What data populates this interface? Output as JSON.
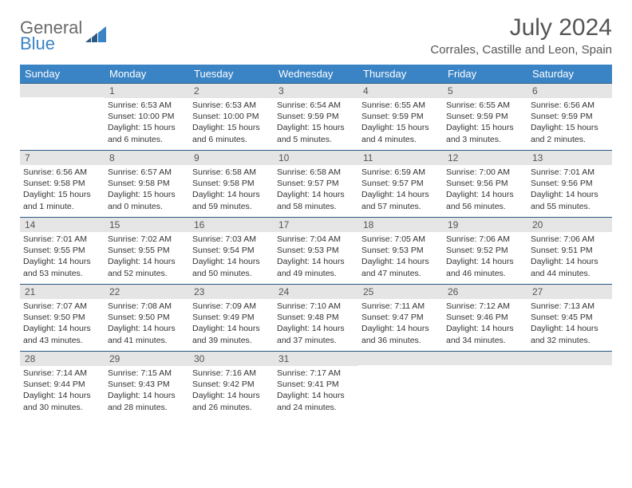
{
  "logo": {
    "text_general": "General",
    "text_blue": "Blue"
  },
  "title": "July 2024",
  "location": "Corrales, Castille and Leon, Spain",
  "day_headers": [
    "Sunday",
    "Monday",
    "Tuesday",
    "Wednesday",
    "Thursday",
    "Friday",
    "Saturday"
  ],
  "colors": {
    "header_bg": "#3a84c5",
    "header_text": "#ffffff",
    "day_number_bg": "#e5e5e5",
    "border_top": "#2a5a85",
    "text_gray": "#555555",
    "logo_blue": "#3a84c5"
  },
  "weeks": [
    [
      {
        "day": "",
        "sunrise": "",
        "sunset": "",
        "daylight1": "",
        "daylight2": ""
      },
      {
        "day": "1",
        "sunrise": "Sunrise: 6:53 AM",
        "sunset": "Sunset: 10:00 PM",
        "daylight1": "Daylight: 15 hours",
        "daylight2": "and 6 minutes."
      },
      {
        "day": "2",
        "sunrise": "Sunrise: 6:53 AM",
        "sunset": "Sunset: 10:00 PM",
        "daylight1": "Daylight: 15 hours",
        "daylight2": "and 6 minutes."
      },
      {
        "day": "3",
        "sunrise": "Sunrise: 6:54 AM",
        "sunset": "Sunset: 9:59 PM",
        "daylight1": "Daylight: 15 hours",
        "daylight2": "and 5 minutes."
      },
      {
        "day": "4",
        "sunrise": "Sunrise: 6:55 AM",
        "sunset": "Sunset: 9:59 PM",
        "daylight1": "Daylight: 15 hours",
        "daylight2": "and 4 minutes."
      },
      {
        "day": "5",
        "sunrise": "Sunrise: 6:55 AM",
        "sunset": "Sunset: 9:59 PM",
        "daylight1": "Daylight: 15 hours",
        "daylight2": "and 3 minutes."
      },
      {
        "day": "6",
        "sunrise": "Sunrise: 6:56 AM",
        "sunset": "Sunset: 9:59 PM",
        "daylight1": "Daylight: 15 hours",
        "daylight2": "and 2 minutes."
      }
    ],
    [
      {
        "day": "7",
        "sunrise": "Sunrise: 6:56 AM",
        "sunset": "Sunset: 9:58 PM",
        "daylight1": "Daylight: 15 hours",
        "daylight2": "and 1 minute."
      },
      {
        "day": "8",
        "sunrise": "Sunrise: 6:57 AM",
        "sunset": "Sunset: 9:58 PM",
        "daylight1": "Daylight: 15 hours",
        "daylight2": "and 0 minutes."
      },
      {
        "day": "9",
        "sunrise": "Sunrise: 6:58 AM",
        "sunset": "Sunset: 9:58 PM",
        "daylight1": "Daylight: 14 hours",
        "daylight2": "and 59 minutes."
      },
      {
        "day": "10",
        "sunrise": "Sunrise: 6:58 AM",
        "sunset": "Sunset: 9:57 PM",
        "daylight1": "Daylight: 14 hours",
        "daylight2": "and 58 minutes."
      },
      {
        "day": "11",
        "sunrise": "Sunrise: 6:59 AM",
        "sunset": "Sunset: 9:57 PM",
        "daylight1": "Daylight: 14 hours",
        "daylight2": "and 57 minutes."
      },
      {
        "day": "12",
        "sunrise": "Sunrise: 7:00 AM",
        "sunset": "Sunset: 9:56 PM",
        "daylight1": "Daylight: 14 hours",
        "daylight2": "and 56 minutes."
      },
      {
        "day": "13",
        "sunrise": "Sunrise: 7:01 AM",
        "sunset": "Sunset: 9:56 PM",
        "daylight1": "Daylight: 14 hours",
        "daylight2": "and 55 minutes."
      }
    ],
    [
      {
        "day": "14",
        "sunrise": "Sunrise: 7:01 AM",
        "sunset": "Sunset: 9:55 PM",
        "daylight1": "Daylight: 14 hours",
        "daylight2": "and 53 minutes."
      },
      {
        "day": "15",
        "sunrise": "Sunrise: 7:02 AM",
        "sunset": "Sunset: 9:55 PM",
        "daylight1": "Daylight: 14 hours",
        "daylight2": "and 52 minutes."
      },
      {
        "day": "16",
        "sunrise": "Sunrise: 7:03 AM",
        "sunset": "Sunset: 9:54 PM",
        "daylight1": "Daylight: 14 hours",
        "daylight2": "and 50 minutes."
      },
      {
        "day": "17",
        "sunrise": "Sunrise: 7:04 AM",
        "sunset": "Sunset: 9:53 PM",
        "daylight1": "Daylight: 14 hours",
        "daylight2": "and 49 minutes."
      },
      {
        "day": "18",
        "sunrise": "Sunrise: 7:05 AM",
        "sunset": "Sunset: 9:53 PM",
        "daylight1": "Daylight: 14 hours",
        "daylight2": "and 47 minutes."
      },
      {
        "day": "19",
        "sunrise": "Sunrise: 7:06 AM",
        "sunset": "Sunset: 9:52 PM",
        "daylight1": "Daylight: 14 hours",
        "daylight2": "and 46 minutes."
      },
      {
        "day": "20",
        "sunrise": "Sunrise: 7:06 AM",
        "sunset": "Sunset: 9:51 PM",
        "daylight1": "Daylight: 14 hours",
        "daylight2": "and 44 minutes."
      }
    ],
    [
      {
        "day": "21",
        "sunrise": "Sunrise: 7:07 AM",
        "sunset": "Sunset: 9:50 PM",
        "daylight1": "Daylight: 14 hours",
        "daylight2": "and 43 minutes."
      },
      {
        "day": "22",
        "sunrise": "Sunrise: 7:08 AM",
        "sunset": "Sunset: 9:50 PM",
        "daylight1": "Daylight: 14 hours",
        "daylight2": "and 41 minutes."
      },
      {
        "day": "23",
        "sunrise": "Sunrise: 7:09 AM",
        "sunset": "Sunset: 9:49 PM",
        "daylight1": "Daylight: 14 hours",
        "daylight2": "and 39 minutes."
      },
      {
        "day": "24",
        "sunrise": "Sunrise: 7:10 AM",
        "sunset": "Sunset: 9:48 PM",
        "daylight1": "Daylight: 14 hours",
        "daylight2": "and 37 minutes."
      },
      {
        "day": "25",
        "sunrise": "Sunrise: 7:11 AM",
        "sunset": "Sunset: 9:47 PM",
        "daylight1": "Daylight: 14 hours",
        "daylight2": "and 36 minutes."
      },
      {
        "day": "26",
        "sunrise": "Sunrise: 7:12 AM",
        "sunset": "Sunset: 9:46 PM",
        "daylight1": "Daylight: 14 hours",
        "daylight2": "and 34 minutes."
      },
      {
        "day": "27",
        "sunrise": "Sunrise: 7:13 AM",
        "sunset": "Sunset: 9:45 PM",
        "daylight1": "Daylight: 14 hours",
        "daylight2": "and 32 minutes."
      }
    ],
    [
      {
        "day": "28",
        "sunrise": "Sunrise: 7:14 AM",
        "sunset": "Sunset: 9:44 PM",
        "daylight1": "Daylight: 14 hours",
        "daylight2": "and 30 minutes."
      },
      {
        "day": "29",
        "sunrise": "Sunrise: 7:15 AM",
        "sunset": "Sunset: 9:43 PM",
        "daylight1": "Daylight: 14 hours",
        "daylight2": "and 28 minutes."
      },
      {
        "day": "30",
        "sunrise": "Sunrise: 7:16 AM",
        "sunset": "Sunset: 9:42 PM",
        "daylight1": "Daylight: 14 hours",
        "daylight2": "and 26 minutes."
      },
      {
        "day": "31",
        "sunrise": "Sunrise: 7:17 AM",
        "sunset": "Sunset: 9:41 PM",
        "daylight1": "Daylight: 14 hours",
        "daylight2": "and 24 minutes."
      },
      {
        "day": "",
        "sunrise": "",
        "sunset": "",
        "daylight1": "",
        "daylight2": ""
      },
      {
        "day": "",
        "sunrise": "",
        "sunset": "",
        "daylight1": "",
        "daylight2": ""
      },
      {
        "day": "",
        "sunrise": "",
        "sunset": "",
        "daylight1": "",
        "daylight2": ""
      }
    ]
  ]
}
